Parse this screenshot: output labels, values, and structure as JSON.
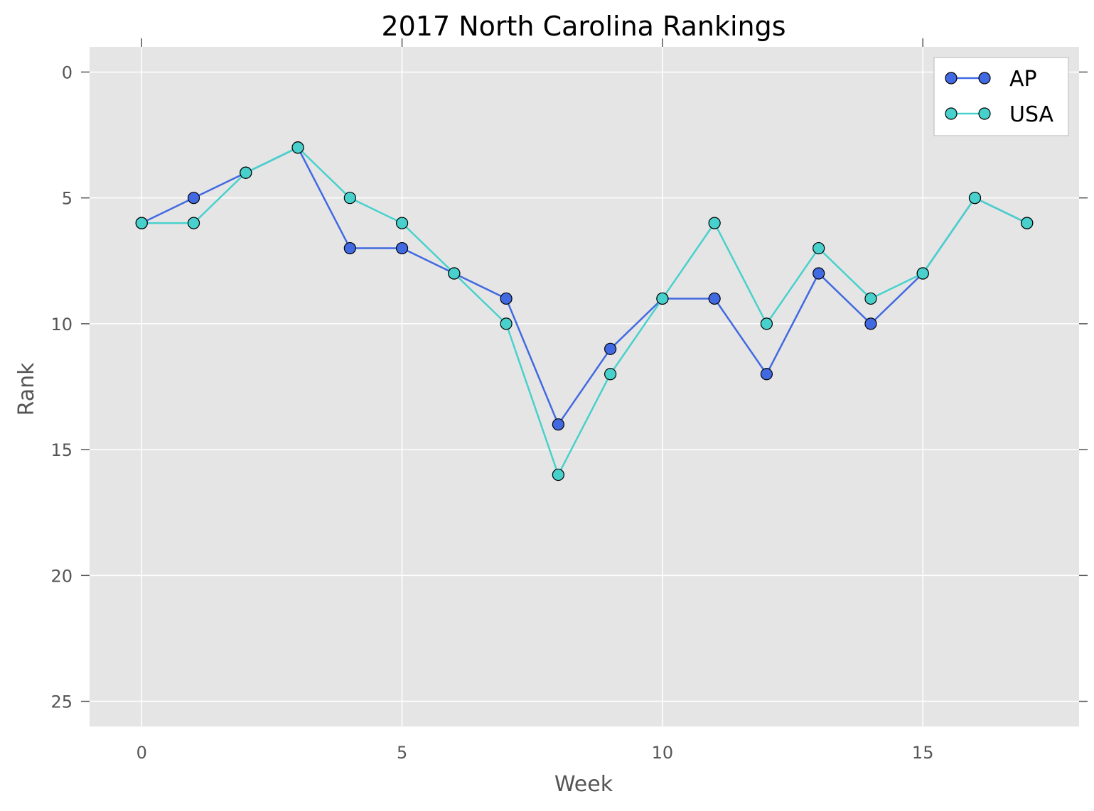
{
  "chart_data": {
    "type": "line",
    "title": "2017 North Carolina Rankings",
    "xlabel": "Week",
    "ylabel": "Rank",
    "xlim": [
      -1,
      18
    ],
    "ylim": [
      26,
      -1
    ],
    "y_inverted": true,
    "xticks": [
      0,
      5,
      10,
      15
    ],
    "yticks": [
      0,
      5,
      10,
      15,
      20,
      25
    ],
    "grid": true,
    "legend_position": "top-right",
    "x": [
      0,
      1,
      2,
      3,
      4,
      5,
      6,
      7,
      8,
      9,
      10,
      11,
      12,
      13,
      14,
      15,
      16,
      17
    ],
    "series": [
      {
        "name": "AP",
        "color": "#4169e1",
        "values": [
          6,
          5,
          4,
          3,
          7,
          7,
          8,
          9,
          14,
          11,
          9,
          9,
          12,
          8,
          10,
          8,
          5,
          6
        ]
      },
      {
        "name": "USA",
        "color": "#48d1cc",
        "values": [
          6,
          6,
          4,
          3,
          5,
          6,
          8,
          10,
          16,
          12,
          9,
          6,
          10,
          7,
          9,
          8,
          5,
          6
        ]
      }
    ]
  },
  "colors": {
    "plot_background": "#e5e5e5",
    "grid": "#ffffff",
    "marker_edge": "#000000"
  }
}
